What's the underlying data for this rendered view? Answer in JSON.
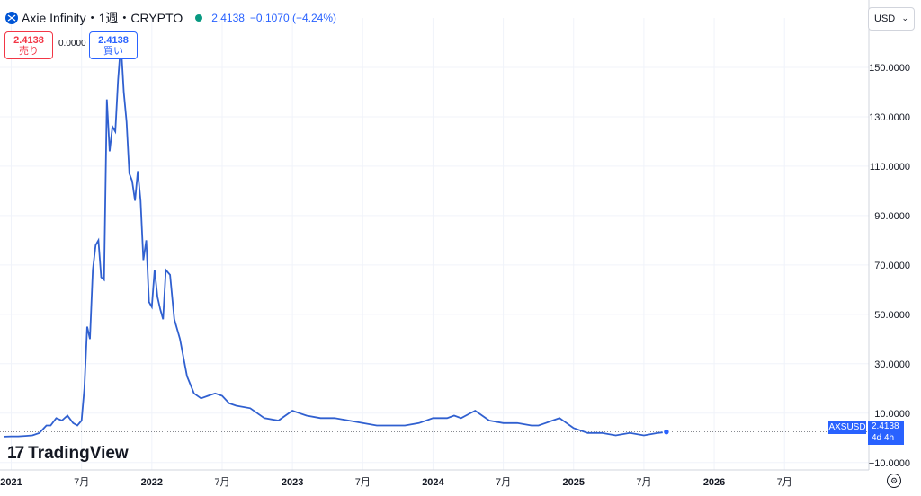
{
  "header": {
    "title": "Axie Infinity・1週・CRYPTO",
    "last": "2.4138",
    "change": "−0.1070 (−4.24%)",
    "logo_icon": "axie-logo-icon"
  },
  "trade": {
    "sell_price": "2.4138",
    "sell_label": "売り",
    "buy_price": "2.4138",
    "buy_label": "買い",
    "spread": "0.0000"
  },
  "currency": {
    "label": "USD"
  },
  "brand": {
    "name": "TradingView",
    "mark": "17"
  },
  "last_price_tag": {
    "symbol": "AXSUSD",
    "price": "2.4138",
    "countdown": "4d 4h"
  },
  "colors": {
    "line": "#3060d0",
    "accent": "#2962ff",
    "sell": "#f23645",
    "up": "#089981"
  },
  "chart_data": {
    "type": "line",
    "title": "",
    "ylim": [
      -13,
      170
    ],
    "y_ticks": [
      -10,
      10,
      30,
      50,
      70,
      90,
      110,
      130,
      150
    ],
    "y_tick_labels": [
      "−10.0000",
      "10.0000",
      "30.0000",
      "50.0000",
      "70.0000",
      "90.0000",
      "110.0000",
      "130.0000",
      "150.0000"
    ],
    "x_ticks": [
      {
        "x": 2021.0,
        "label": "2021"
      },
      {
        "x": 2021.5,
        "label": "7月"
      },
      {
        "x": 2022.0,
        "label": "2022"
      },
      {
        "x": 2022.5,
        "label": "7月"
      },
      {
        "x": 2023.0,
        "label": "2023"
      },
      {
        "x": 2023.5,
        "label": "7月"
      },
      {
        "x": 2024.0,
        "label": "2024"
      },
      {
        "x": 2024.5,
        "label": "7月"
      },
      {
        "x": 2025.0,
        "label": "2025"
      },
      {
        "x": 2025.5,
        "label": "7月"
      },
      {
        "x": 2026.0,
        "label": "2026"
      },
      {
        "x": 2026.5,
        "label": "7月"
      }
    ],
    "xlim": [
      2020.92,
      2027.1
    ],
    "grid": true,
    "last_value": 2.4138,
    "series": [
      {
        "x": [
          2020.95,
          2021.0,
          2021.05,
          2021.1,
          2021.15,
          2021.2,
          2021.25,
          2021.28,
          2021.32,
          2021.36,
          2021.4,
          2021.44,
          2021.47,
          2021.5,
          2021.52,
          2021.54,
          2021.56,
          2021.58,
          2021.6,
          2021.62,
          2021.64,
          2021.66,
          2021.68,
          2021.7,
          2021.72,
          2021.74,
          2021.76,
          2021.78,
          2021.8,
          2021.82,
          2021.84,
          2021.86,
          2021.88,
          2021.9,
          2021.92,
          2021.94,
          2021.96,
          2021.98,
          2022.0,
          2022.02,
          2022.04,
          2022.06,
          2022.08,
          2022.1,
          2022.13,
          2022.16,
          2022.2,
          2022.25,
          2022.3,
          2022.35,
          2022.4,
          2022.45,
          2022.5,
          2022.55,
          2022.6,
          2022.7,
          2022.8,
          2022.9,
          2023.0,
          2023.05,
          2023.1,
          2023.2,
          2023.3,
          2023.4,
          2023.5,
          2023.6,
          2023.7,
          2023.8,
          2023.9,
          2024.0,
          2024.1,
          2024.15,
          2024.2,
          2024.3,
          2024.4,
          2024.5,
          2024.6,
          2024.7,
          2024.75,
          2024.8,
          2024.85,
          2024.9,
          2024.95,
          2025.0,
          2025.1,
          2025.2,
          2025.3,
          2025.4,
          2025.5,
          2025.6,
          2025.66
        ],
        "y": [
          0.5,
          0.6,
          0.6,
          0.8,
          1,
          2,
          5,
          5,
          8,
          7,
          9,
          6,
          5,
          7,
          20,
          45,
          40,
          68,
          78,
          80,
          65,
          64,
          137,
          116,
          126,
          124,
          145,
          160,
          140,
          128,
          107,
          104,
          96,
          108,
          96,
          72,
          80,
          55,
          53,
          68,
          57,
          52,
          48,
          68,
          66,
          48,
          40,
          25,
          18,
          16,
          17,
          18,
          17,
          14,
          13,
          12,
          8,
          7,
          11,
          10,
          9,
          8,
          8,
          7,
          6,
          5,
          5,
          5,
          6,
          8,
          8,
          9,
          8,
          11,
          7,
          6,
          6,
          5,
          5,
          6,
          7,
          8,
          6,
          4,
          2,
          2,
          1,
          2,
          1,
          2,
          2.4
        ]
      }
    ]
  }
}
